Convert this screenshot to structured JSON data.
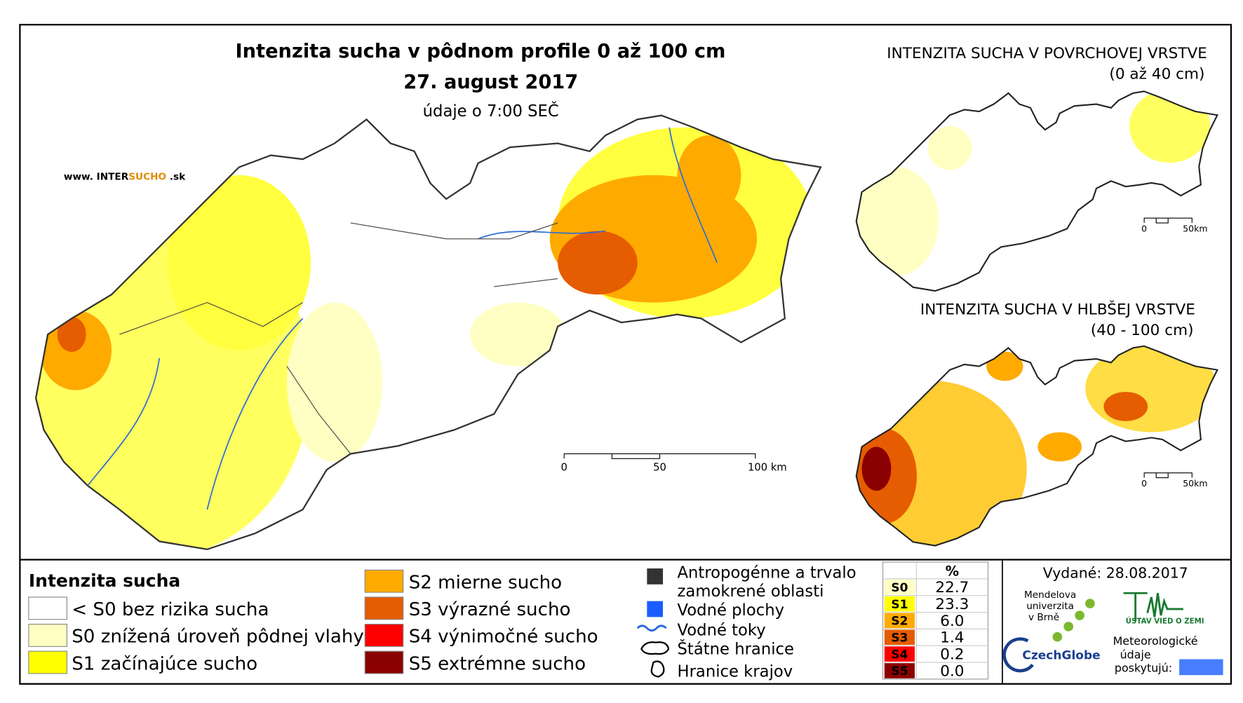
{
  "title": "Intenzita sucha v pôdnom profile 0 až 100 cm",
  "date": "27. august 2017",
  "time_note": "údaje o 7:00 SEČ",
  "website": [
    "www. INTER",
    "SUCHO",
    " .sk"
  ],
  "inset_top": {
    "title": "INTENZITA SUCHA V POVRCHOVEJ VRSTVE",
    "subtitle": "(0 až 40 cm)"
  },
  "inset_bottom": {
    "title": "INTENZITA SUCHA V HLBŠEJ VRSTVE",
    "subtitle": "(40 - 100 cm)"
  },
  "scale_main": [
    "0",
    "50",
    "100 km"
  ],
  "scale_inset": [
    "0",
    "50km"
  ],
  "legend": {
    "title": "Intenzita sucha",
    "items": [
      {
        "label": "< S0 bez rizika sucha",
        "color": "#ffffff"
      },
      {
        "label": "S0 znížená úroveň pôdnej vlahy",
        "color": "#ffffc4"
      },
      {
        "label": "S1 začínajúce sucho",
        "color": "#ffff00"
      },
      {
        "label": "S2 mierne sucho",
        "color": "#ffaa00"
      },
      {
        "label": "S3 výrazné sucho",
        "color": "#e65c00"
      },
      {
        "label": "S4 výnimočné sucho",
        "color": "#ff0000"
      },
      {
        "label": "S5 extrémne sucho",
        "color": "#8b0000"
      }
    ]
  },
  "other_legend": [
    "Antropogénne a trvalo",
    "zamokrené oblasti",
    "Vodné plochy",
    "Vodné toky",
    "Štátne hranice",
    "Hranice krajov"
  ],
  "table": {
    "header": "%",
    "rows": [
      {
        "code": "S0",
        "value": "22.7",
        "color": "#ffffc4"
      },
      {
        "code": "S1",
        "value": "23.3",
        "color": "#ffff00"
      },
      {
        "code": "S2",
        "value": "6.0",
        "color": "#ffaa00"
      },
      {
        "code": "S3",
        "value": "1.4",
        "color": "#e65c00"
      },
      {
        "code": "S4",
        "value": "0.2",
        "color": "#ff0000"
      },
      {
        "code": "S5",
        "value": "0.0",
        "color": "#8b0000"
      }
    ]
  },
  "footer": {
    "issued": "Vydané: 28.08.2017",
    "mendel": [
      "Mendelova",
      "univerzita",
      "v Brně"
    ],
    "czechglobe": "CzechGlobe",
    "ustav": "ÚSTAV VIED O ZEMI",
    "meteo": [
      "Meteorologické",
      "údaje",
      "poskytujú:"
    ]
  }
}
